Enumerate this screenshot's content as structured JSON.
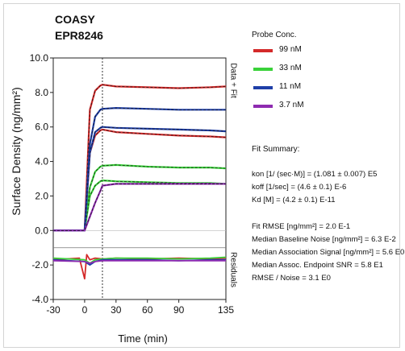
{
  "chart_data": {
    "type": "line",
    "title": "COASY",
    "subtitle": "EPR8246",
    "xlabel": "Time (min)",
    "ylabel": "Surface Density (ng/mm²)",
    "xlim": [
      -30,
      135
    ],
    "ylim": [
      -4.0,
      10.0
    ],
    "x_ticks": [
      -30,
      0,
      30,
      60,
      90,
      135
    ],
    "x_tick_labels": [
      "-30",
      "0",
      "30",
      "60",
      "90",
      "135"
    ],
    "y_ticks": [
      10,
      8,
      6,
      4,
      2,
      0,
      -2,
      -4
    ],
    "y_tick_labels": [
      "10.0",
      "8.0",
      "6.0",
      "4.0",
      "2.0",
      "0.0",
      "-2.0",
      "-4.0"
    ],
    "injection_end_x": 17,
    "upper_panel_label": "Data + Fit",
    "lower_panel_label": "Residuals",
    "grid": false,
    "legend_placement": "right",
    "series": [
      {
        "name": "99 nM",
        "color": "#d42a2a",
        "x": [
          -30,
          0,
          5,
          10,
          15,
          17,
          30,
          60,
          90,
          120,
          135
        ],
        "y": [
          0.0,
          0.0,
          7.0,
          8.1,
          8.4,
          8.45,
          8.35,
          8.3,
          8.25,
          8.3,
          8.35
        ]
      },
      {
        "name": "99 nM",
        "color": "#d42a2a",
        "x": [
          -30,
          0,
          5,
          10,
          15,
          17,
          30,
          60,
          90,
          120,
          135
        ],
        "y": [
          0.0,
          0.0,
          4.5,
          5.5,
          5.8,
          5.85,
          5.7,
          5.6,
          5.5,
          5.45,
          5.4
        ]
      },
      {
        "name": "33 nM",
        "color": "#3ad23a",
        "x": [
          -30,
          0,
          5,
          10,
          15,
          17,
          30,
          60,
          90,
          120,
          135
        ],
        "y": [
          0.0,
          0.0,
          2.5,
          3.4,
          3.7,
          3.75,
          3.8,
          3.7,
          3.65,
          3.65,
          3.6
        ]
      },
      {
        "name": "33 nM",
        "color": "#3ad23a",
        "x": [
          -30,
          0,
          5,
          10,
          15,
          17,
          30,
          60,
          90,
          120,
          135
        ],
        "y": [
          0.0,
          0.0,
          2.0,
          2.6,
          2.85,
          2.9,
          2.85,
          2.8,
          2.75,
          2.75,
          2.7
        ]
      },
      {
        "name": "11 nM",
        "color": "#1f3fa8",
        "x": [
          -30,
          0,
          5,
          10,
          15,
          17,
          30,
          60,
          90,
          120,
          135
        ],
        "y": [
          0.0,
          0.0,
          5.0,
          6.6,
          7.0,
          7.05,
          7.1,
          7.05,
          7.0,
          7.0,
          7.0
        ]
      },
      {
        "name": "11 nM",
        "color": "#1f3fa8",
        "x": [
          -30,
          0,
          5,
          10,
          15,
          17,
          30,
          60,
          90,
          120,
          135
        ],
        "y": [
          0.0,
          0.0,
          4.5,
          5.7,
          5.95,
          6.0,
          5.95,
          5.9,
          5.85,
          5.8,
          5.75
        ]
      },
      {
        "name": "3.7 nM",
        "color": "#8e2bb0",
        "x": [
          -30,
          0,
          5,
          10,
          15,
          17,
          30,
          60,
          90,
          120,
          135
        ],
        "y": [
          0.0,
          0.0,
          0.8,
          1.6,
          2.3,
          2.6,
          2.7,
          2.7,
          2.7,
          2.7,
          2.7
        ]
      }
    ],
    "residuals": [
      {
        "name": "99 nM",
        "color": "#d42a2a",
        "x": [
          -30,
          -5,
          0,
          2,
          5,
          10,
          17,
          30,
          60,
          90,
          120,
          135
        ],
        "y": [
          -1.7,
          -1.6,
          -2.8,
          -1.4,
          -1.7,
          -1.6,
          -1.65,
          -1.6,
          -1.65,
          -1.6,
          -1.65,
          -1.6
        ]
      },
      {
        "name": "33 nM",
        "color": "#3ad23a",
        "x": [
          -30,
          0,
          5,
          10,
          17,
          30,
          60,
          90,
          120,
          135
        ],
        "y": [
          -1.6,
          -1.7,
          -1.9,
          -1.7,
          -1.65,
          -1.6,
          -1.6,
          -1.65,
          -1.6,
          -1.55
        ]
      },
      {
        "name": "11 nM",
        "color": "#1f3fa8",
        "x": [
          -30,
          0,
          5,
          10,
          17,
          30,
          60,
          90,
          120,
          135
        ],
        "y": [
          -1.7,
          -1.8,
          -2.0,
          -1.8,
          -1.7,
          -1.7,
          -1.7,
          -1.75,
          -1.7,
          -1.7
        ]
      },
      {
        "name": "3.7 nM",
        "color": "#8e2bb0",
        "x": [
          -30,
          0,
          5,
          10,
          17,
          30,
          60,
          90,
          120,
          135
        ],
        "y": [
          -1.75,
          -1.8,
          -1.9,
          -1.8,
          -1.75,
          -1.75,
          -1.75,
          -1.75,
          -1.75,
          -1.75
        ]
      }
    ]
  },
  "legend": {
    "title": "Probe Conc.",
    "items": [
      {
        "label": "99 nM",
        "color": "#d42a2a"
      },
      {
        "label": "33 nM",
        "color": "#3ad23a"
      },
      {
        "label": "11 nM",
        "color": "#1f3fa8"
      },
      {
        "label": "3.7 nM",
        "color": "#8e2bb0"
      }
    ]
  },
  "fit_summary": {
    "title": "Fit Summary:",
    "lines": [
      "kon  [1/ (sec·M)]  =  (1.081 ± 0.007) E5",
      "koff  [1/sec]  =  (4.6 ± 0.1) E-6",
      "Kd  [M]  =  (4.2 ± 0.1) E-11",
      "Fit RMSE [ng/mm²]  =  2.0 E-1",
      "Median Baseline Noise [ng/mm²]  =  6.3 E-2",
      "Median Association Signal [ng/mm²]  =  5.6 E0",
      "Median Assoc. Endpoint SNR  =  5.8 E1",
      "RMSE / Noise  =  3.1 E0"
    ]
  }
}
